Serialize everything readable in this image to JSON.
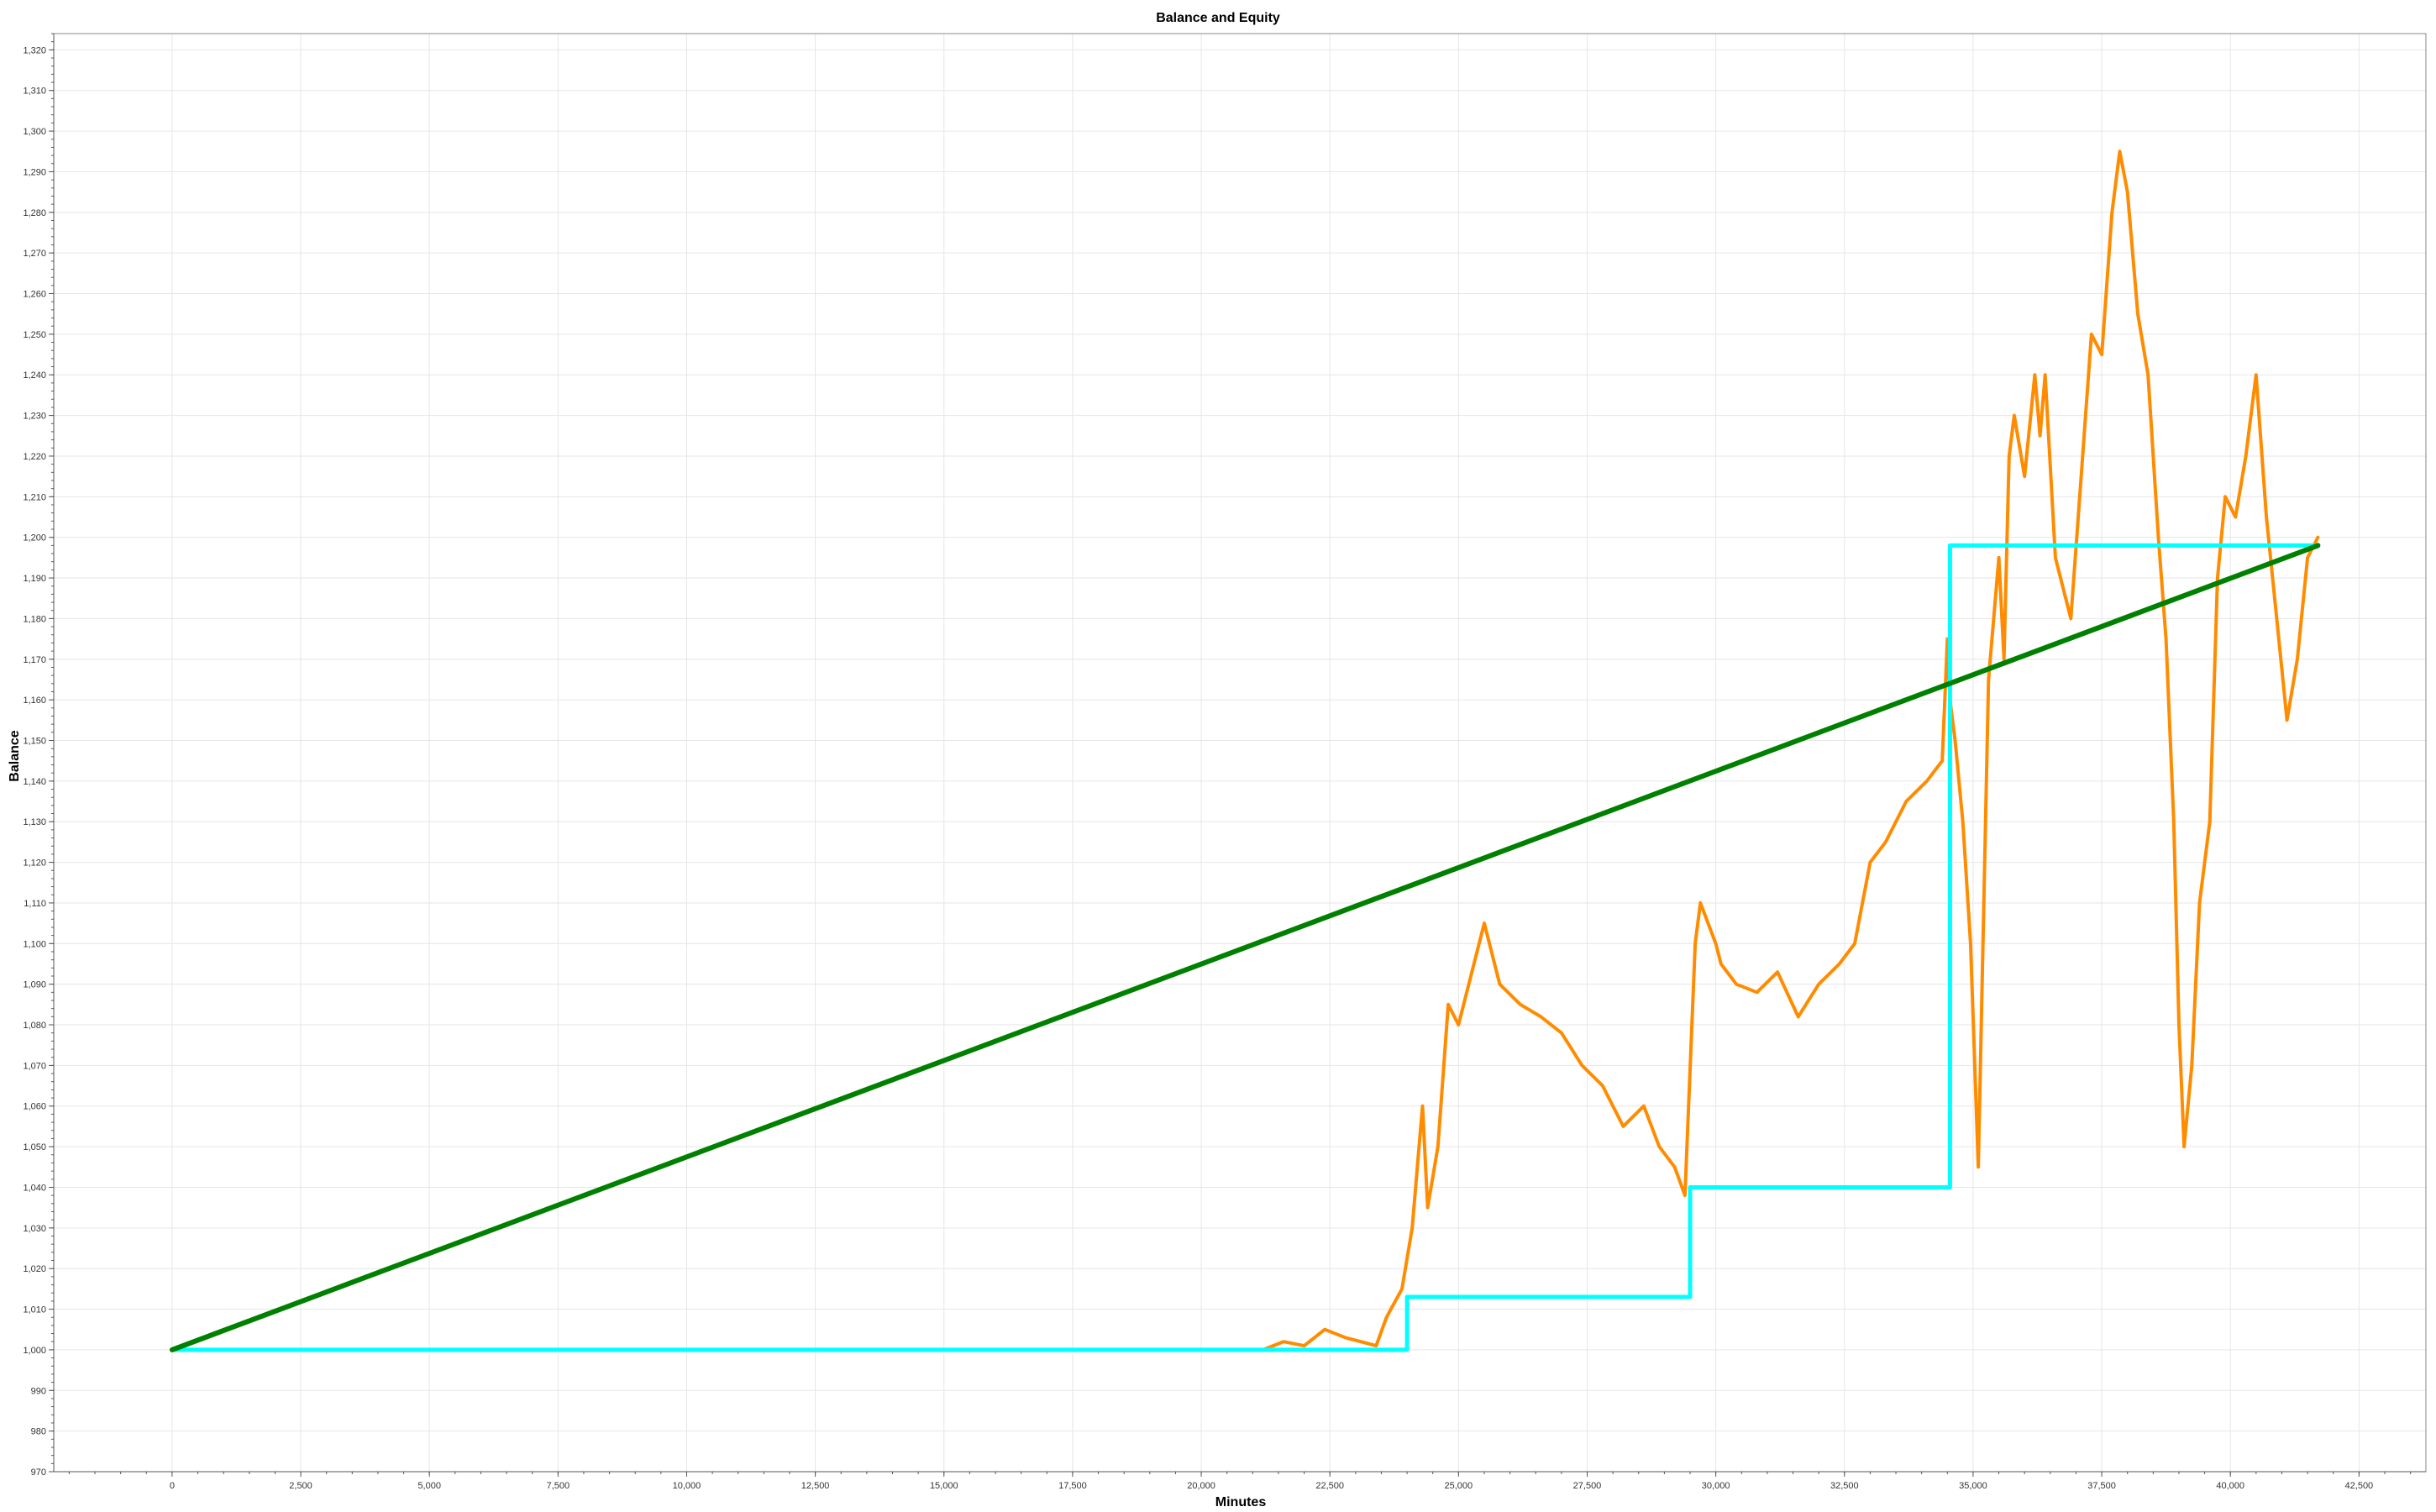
{
  "chart_data": {
    "type": "line",
    "title": "Balance and Equity",
    "xlabel": "Minutes",
    "ylabel": "Balance",
    "xlim": [
      -2300,
      43800
    ],
    "ylim": [
      970,
      1324
    ],
    "x_ticks": [
      0,
      2500,
      5000,
      7500,
      10000,
      12500,
      15000,
      17500,
      20000,
      22500,
      25000,
      27500,
      30000,
      32500,
      35000,
      37500,
      40000,
      42500
    ],
    "x_tick_labels": [
      "0",
      "2,500",
      "5,000",
      "7,500",
      "10,000",
      "12,500",
      "15,000",
      "17,500",
      "20,000",
      "22,500",
      "25,000",
      "27,500",
      "30,000",
      "32,500",
      "35,000",
      "37,500",
      "40,000",
      "42,500"
    ],
    "y_ticks": [
      970,
      980,
      990,
      1000,
      1010,
      1020,
      1030,
      1040,
      1050,
      1060,
      1070,
      1080,
      1090,
      1100,
      1110,
      1120,
      1130,
      1140,
      1150,
      1160,
      1170,
      1180,
      1190,
      1200,
      1210,
      1220,
      1230,
      1240,
      1250,
      1260,
      1270,
      1280,
      1290,
      1300,
      1310,
      1320
    ],
    "y_tick_labels": [
      "970",
      "980",
      "990",
      "1,000",
      "1,010",
      "1,020",
      "1,030",
      "1,040",
      "1,050",
      "1,060",
      "1,070",
      "1,080",
      "1,090",
      "1,100",
      "1,110",
      "1,120",
      "1,130",
      "1,140",
      "1,150",
      "1,160",
      "1,170",
      "1,180",
      "1,190",
      "1,200",
      "1,210",
      "1,220",
      "1,230",
      "1,240",
      "1,250",
      "1,260",
      "1,270",
      "1,280",
      "1,290",
      "1,300",
      "1,310",
      "1,320"
    ],
    "grid": true,
    "legend": "none",
    "series": [
      {
        "color": "#ff8c00",
        "x": [
          0,
          21200,
          21600,
          22000,
          22400,
          22800,
          23100,
          23400,
          23600,
          23900,
          24100,
          24200,
          24300,
          24400,
          24600,
          24800,
          25000,
          25300,
          25500,
          25800,
          26200,
          26600,
          27000,
          27400,
          27800,
          28200,
          28600,
          28900,
          29200,
          29400,
          29600,
          29700,
          29850,
          30000,
          30100,
          30400,
          30800,
          31200,
          31600,
          32000,
          32400,
          32700,
          33000,
          33300,
          33700,
          34100,
          34400,
          34500,
          34550,
          34650,
          34800,
          34950,
          35100,
          35300,
          35500,
          35600,
          35700,
          35800,
          36000,
          36200,
          36300,
          36400,
          36600,
          36900,
          37100,
          37300,
          37500,
          37700,
          37850,
          38000,
          38200,
          38400,
          38600,
          38750,
          38900,
          39000,
          39100,
          39250,
          39400,
          39600,
          39750,
          39900,
          40100,
          40300,
          40500,
          40700,
          40900,
          41100,
          41300,
          41500,
          41700
        ],
        "y": [
          1000,
          1000,
          1002,
          1001,
          1005,
          1003,
          1002,
          1001,
          1008,
          1015,
          1030,
          1045,
          1060,
          1035,
          1050,
          1085,
          1080,
          1095,
          1105,
          1090,
          1085,
          1082,
          1078,
          1070,
          1065,
          1055,
          1060,
          1050,
          1045,
          1038,
          1100,
          1110,
          1105,
          1100,
          1095,
          1090,
          1088,
          1093,
          1082,
          1090,
          1095,
          1100,
          1120,
          1125,
          1135,
          1140,
          1145,
          1175,
          1160,
          1150,
          1130,
          1100,
          1045,
          1165,
          1195,
          1170,
          1220,
          1230,
          1215,
          1240,
          1225,
          1240,
          1195,
          1180,
          1215,
          1250,
          1245,
          1280,
          1295,
          1285,
          1255,
          1240,
          1200,
          1175,
          1130,
          1080,
          1050,
          1070,
          1110,
          1130,
          1190,
          1210,
          1205,
          1220,
          1240,
          1205,
          1180,
          1155,
          1170,
          1195,
          1200
        ]
      },
      {
        "color": "#00ffff",
        "x": [
          0,
          24000,
          24000,
          29500,
          29500,
          34550,
          34550,
          41700
        ],
        "y": [
          1000,
          1000,
          1013,
          1013,
          1040,
          1040,
          1198,
          1198
        ]
      },
      {
        "color": "#008000",
        "x": [
          0,
          41700
        ],
        "y": [
          1000,
          1198
        ]
      }
    ]
  }
}
